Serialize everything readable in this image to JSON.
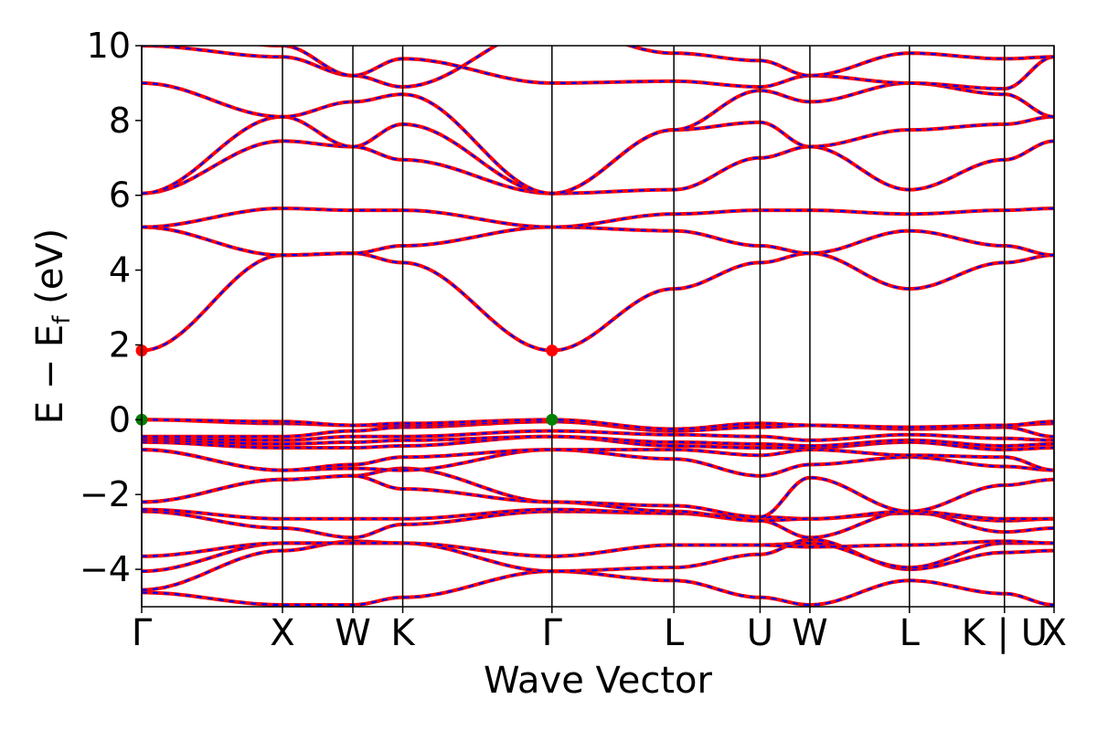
{
  "chart_data": {
    "type": "line",
    "xlabel": "Wave Vector",
    "ylabel": "E − E",
    "ylabel_sub": "f",
    "ylabel_unit": " (eV)",
    "ylim": [
      -5,
      10
    ],
    "yticks": [
      -4,
      -2,
      0,
      2,
      4,
      6,
      8,
      10
    ],
    "ytick_labels": [
      "−4",
      "−2",
      "0",
      "2",
      "4",
      "6",
      "8",
      "10"
    ],
    "grid": false,
    "xlim": [
      0,
      6.48
    ],
    "kpoints": [
      {
        "label": "Γ",
        "x": 0.0
      },
      {
        "label": "X",
        "x": 1.0
      },
      {
        "label": "W",
        "x": 1.5
      },
      {
        "label": "K",
        "x": 1.854
      },
      {
        "label": "Γ",
        "x": 2.914
      },
      {
        "label": "L",
        "x": 3.78
      },
      {
        "label": "U",
        "x": 4.392
      },
      {
        "label": "W",
        "x": 4.746
      },
      {
        "label": "L",
        "x": 5.453
      },
      {
        "label": "K | U",
        "x": 6.128
      },
      {
        "label": "X",
        "x": 6.48
      }
    ],
    "colors": {
      "bands_solid": "#ff0000",
      "bands_dashed": "#0000ff",
      "vbm": "#008000",
      "cbm": "#ff0000"
    },
    "bands": [
      [
        -4.62,
        -4.95,
        -4.95,
        -4.75,
        -4.05,
        -4.3,
        -4.75,
        -4.95,
        -4.3,
        -4.65,
        -4.95
      ],
      [
        -4.55,
        -3.5,
        -3.25,
        -3.3,
        -4.05,
        -3.95,
        -3.6,
        -3.2,
        -4.0,
        -3.55,
        -3.5
      ],
      [
        -4.05,
        -3.3,
        -3.3,
        -3.3,
        -3.65,
        -3.35,
        -3.35,
        -3.3,
        -3.95,
        -3.3,
        -3.3
      ],
      [
        -3.65,
        -3.3,
        -3.3,
        -3.3,
        -3.65,
        -3.35,
        -3.35,
        -3.4,
        -3.35,
        -3.25,
        -3.3
      ],
      [
        -2.45,
        -2.9,
        -3.15,
        -2.8,
        -2.45,
        -2.5,
        -2.7,
        -3.15,
        -2.45,
        -3.0,
        -2.9
      ],
      [
        -2.4,
        -2.65,
        -2.65,
        -2.65,
        -2.4,
        -2.5,
        -2.6,
        -2.65,
        -2.5,
        -2.7,
        -2.65
      ],
      [
        -2.2,
        -1.6,
        -1.5,
        -1.3,
        -2.2,
        -2.45,
        -2.7,
        -2.65,
        -2.45,
        -2.65,
        -2.65
      ],
      [
        -2.2,
        -1.6,
        -1.5,
        -1.85,
        -2.2,
        -2.3,
        -2.6,
        -1.55,
        -2.45,
        -1.75,
        -1.6
      ],
      [
        -0.8,
        -1.35,
        -1.3,
        -1.35,
        -0.8,
        -1.05,
        -1.5,
        -1.2,
        -1.0,
        -1.25,
        -1.35
      ],
      [
        -0.8,
        -1.35,
        -1.2,
        -1.0,
        -0.8,
        -0.8,
        -0.95,
        -0.8,
        -0.95,
        -1.0,
        -1.35
      ],
      [
        -0.6,
        -0.75,
        -0.75,
        -0.7,
        -0.45,
        -0.7,
        -0.75,
        -0.75,
        -0.6,
        -0.8,
        -0.75
      ],
      [
        -0.55,
        -0.65,
        -0.6,
        -0.55,
        -0.45,
        -0.6,
        -0.65,
        -0.7,
        -0.55,
        -0.7,
        -0.65
      ],
      [
        -0.5,
        -0.55,
        -0.45,
        -0.45,
        -0.3,
        -0.4,
        -0.45,
        -0.55,
        -0.4,
        -0.5,
        -0.55
      ],
      [
        -0.45,
        -0.45,
        -0.3,
        -0.2,
        -0.05,
        -0.3,
        -0.2,
        -0.15,
        -0.25,
        -0.2,
        -0.45
      ],
      [
        0.0,
        -0.1,
        -0.15,
        -0.15,
        -0.05,
        -0.25,
        -0.1,
        -0.15,
        -0.25,
        -0.15,
        -0.1
      ],
      [
        0.0,
        -0.05,
        -0.15,
        -0.1,
        0.0,
        -0.25,
        -0.1,
        -0.15,
        -0.2,
        -0.15,
        -0.05
      ],
      [
        1.85,
        4.4,
        4.45,
        4.2,
        1.85,
        3.5,
        4.2,
        4.45,
        3.5,
        4.2,
        4.4
      ],
      [
        5.15,
        4.4,
        4.45,
        4.65,
        5.15,
        5.05,
        4.65,
        4.45,
        5.05,
        4.65,
        4.4
      ],
      [
        5.15,
        5.65,
        5.6,
        5.6,
        5.15,
        5.5,
        5.6,
        5.6,
        5.5,
        5.6,
        5.65
      ],
      [
        6.05,
        7.45,
        7.3,
        6.95,
        6.05,
        6.15,
        7.0,
        7.3,
        6.15,
        6.95,
        7.45
      ],
      [
        6.05,
        8.1,
        7.3,
        7.9,
        6.05,
        7.75,
        7.95,
        7.3,
        7.75,
        7.9,
        8.1
      ],
      [
        9.0,
        8.1,
        8.5,
        8.7,
        6.05,
        7.75,
        8.8,
        8.5,
        9.0,
        8.7,
        8.1
      ],
      [
        10.0,
        9.7,
        9.2,
        9.65,
        9.0,
        9.05,
        8.9,
        9.2,
        9.0,
        8.85,
        9.7
      ],
      [
        10.5,
        10.0,
        9.2,
        8.9,
        10.5,
        9.8,
        9.6,
        9.2,
        9.8,
        9.65,
        9.7
      ]
    ],
    "vbm_points": [
      {
        "x": 0.0,
        "y": 0.0
      },
      {
        "x": 2.914,
        "y": 0.0
      }
    ],
    "cbm_points": [
      {
        "x": 0.0,
        "y": 1.85
      },
      {
        "x": 2.914,
        "y": 1.85
      }
    ]
  }
}
